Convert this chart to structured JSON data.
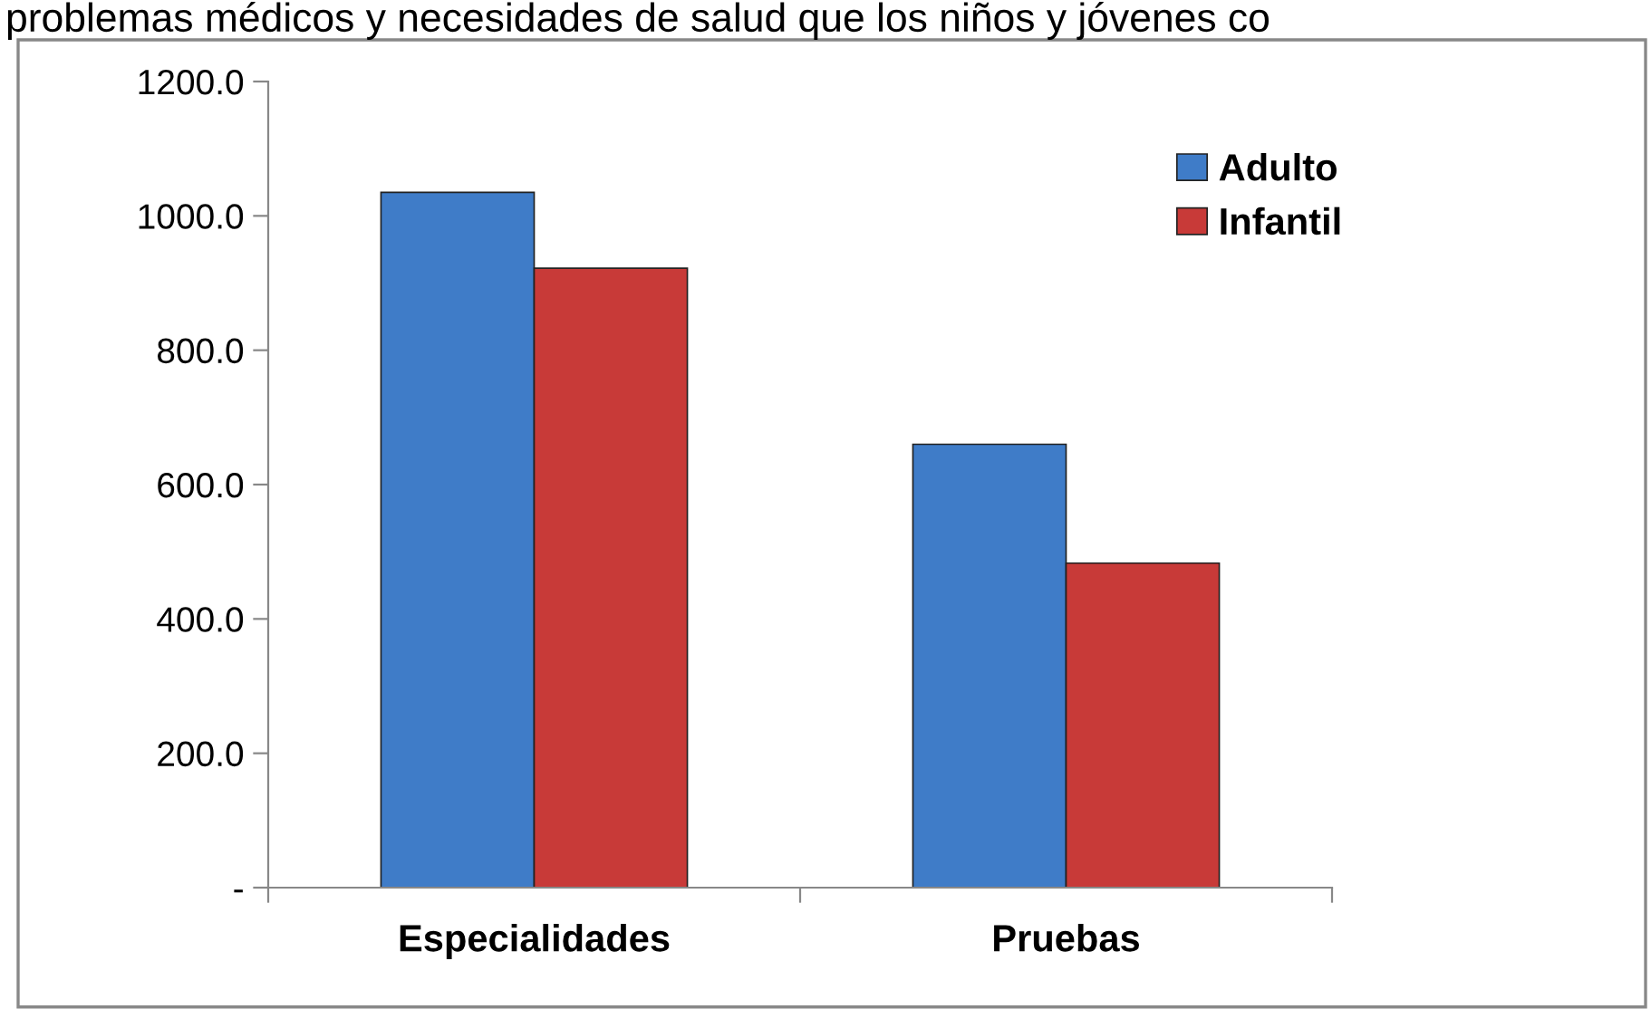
{
  "chart_data": {
    "type": "bar",
    "annotations": [
      "problemas médicos y necesidades de salud que los niños y jóvenes co"
    ],
    "categories": [
      "Especialidades",
      "Pruebas"
    ],
    "series": [
      {
        "name": "Adulto",
        "color": "#3f7cc8",
        "values": [
          1035,
          660
        ]
      },
      {
        "name": "Infantil",
        "color": "#c83a38",
        "values": [
          922,
          483
        ]
      }
    ],
    "ylim": [
      0,
      1200
    ],
    "yticks": [
      {
        "value": 0,
        "label": "-"
      },
      {
        "value": 200,
        "label": "200.0"
      },
      {
        "value": 400,
        "label": "400.0"
      },
      {
        "value": 600,
        "label": "600.0"
      },
      {
        "value": 800,
        "label": "800.0"
      },
      {
        "value": 1000,
        "label": "1000.0"
      },
      {
        "value": 1200,
        "label": "1200.0"
      }
    ],
    "grid": false,
    "legend": "top right"
  }
}
